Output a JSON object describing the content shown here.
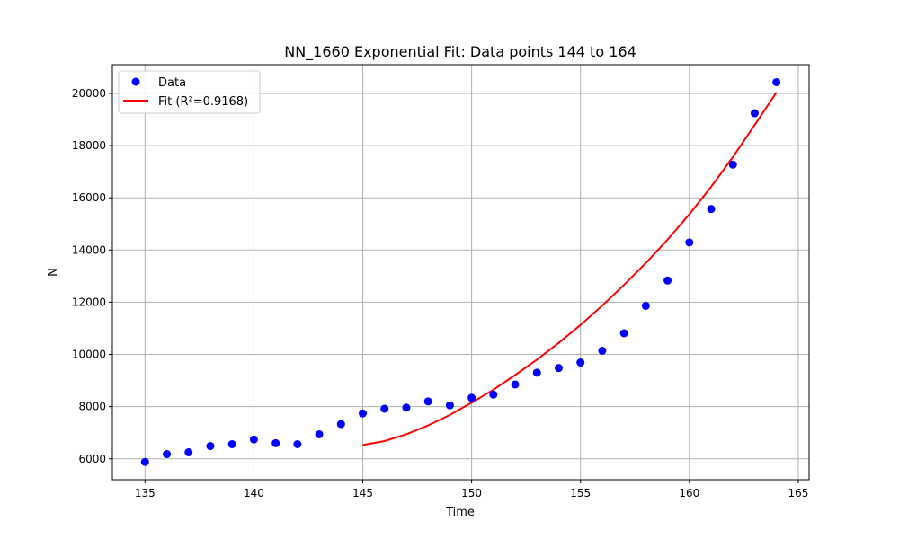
{
  "chart_data": {
    "type": "scatter",
    "title": "NN_1660 Exponential Fit: Data points 144 to 164",
    "xlabel": "Time",
    "ylabel": "N",
    "xlim": [
      133.5,
      165.5
    ],
    "ylim": [
      5200,
      21100
    ],
    "xticks": [
      135,
      140,
      145,
      150,
      155,
      160,
      165
    ],
    "yticks": [
      6000,
      8000,
      10000,
      12000,
      14000,
      16000,
      18000,
      20000
    ],
    "grid": true,
    "legend_position": "top-left",
    "series": [
      {
        "name": "Data",
        "kind": "scatter",
        "color": "#0000ff",
        "x": [
          135,
          136,
          137,
          138,
          139,
          140,
          141,
          142,
          143,
          144,
          145,
          146,
          147,
          148,
          149,
          150,
          151,
          152,
          153,
          154,
          155,
          156,
          157,
          158,
          159,
          160,
          161,
          162,
          163,
          164
        ],
        "y": [
          5880,
          6180,
          6250,
          6490,
          6560,
          6740,
          6600,
          6560,
          6940,
          7330,
          7740,
          7920,
          7960,
          8200,
          8050,
          8340,
          8460,
          8850,
          9300,
          9480,
          9690,
          10140,
          10810,
          11860,
          12830,
          14290,
          15570,
          17270,
          19240,
          20430
        ]
      },
      {
        "name": "Fit (R²=0.9168)",
        "kind": "line",
        "color": "#ff0000",
        "x": [
          145,
          146,
          147,
          148,
          149,
          150,
          151,
          152,
          153,
          154,
          155,
          156,
          157,
          158,
          159,
          160,
          161,
          162,
          163,
          164
        ],
        "y": [
          6530,
          6680,
          6940,
          7280,
          7680,
          8150,
          8650,
          9210,
          9800,
          10440,
          11130,
          11870,
          12660,
          13500,
          14400,
          15370,
          16420,
          17560,
          18790,
          20040
        ]
      }
    ]
  }
}
